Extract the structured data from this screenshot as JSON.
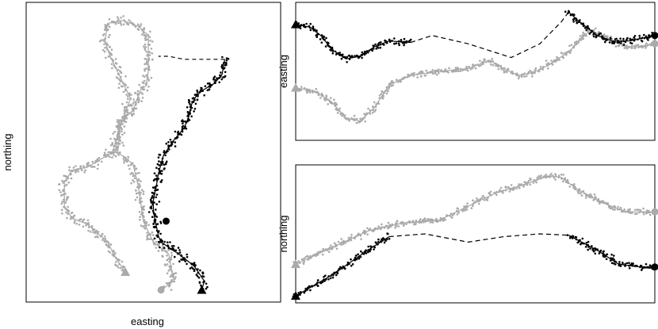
{
  "colors": {
    "track_a": "#aaaaaa",
    "track_b": "#000000",
    "frame": "#000000"
  },
  "chart_data": [
    {
      "type": "scatter",
      "title": "",
      "xlabel": "easting",
      "ylabel": "northing",
      "grid": false,
      "xlim": [
        0,
        100
      ],
      "ylim": [
        0,
        100
      ],
      "series": [
        {
          "color": "#aaaaaa",
          "curve": [
            [
              53,
              4
            ],
            [
              58,
              7
            ],
            [
              56,
              16
            ],
            [
              50,
              20
            ],
            [
              46,
              27
            ],
            [
              45,
              33
            ],
            [
              44,
              39
            ],
            [
              42,
              46
            ],
            [
              36,
              50
            ],
            [
              37,
              60
            ],
            [
              42,
              64
            ],
            [
              45,
              71
            ],
            [
              47,
              72
            ],
            [
              48,
              77
            ],
            [
              48,
              84
            ],
            [
              48,
              86
            ],
            [
              48,
              89
            ],
            [
              44,
              92
            ],
            [
              38,
              94
            ],
            [
              32,
              93
            ],
            [
              31,
              87
            ],
            [
              33,
              82
            ],
            [
              41,
              68
            ],
            [
              38,
              61
            ],
            [
              36,
              56
            ],
            [
              34,
              50
            ],
            [
              30,
              48
            ],
            [
              24,
              45
            ],
            [
              18,
              44
            ],
            [
              15,
              40
            ],
            [
              15,
              32
            ],
            [
              18,
              28
            ],
            [
              24,
              26
            ],
            [
              28,
              23
            ],
            [
              32,
              20
            ],
            [
              35,
              15
            ],
            [
              39,
              10
            ]
          ],
          "start": [
            39,
            10
          ],
          "end": [
            53,
            4
          ],
          "start_marker": "triangle",
          "end_marker": "circle"
        },
        {
          "color": "#000000",
          "curve": [
            [
              78,
              81
            ],
            [
              77,
              76
            ],
            [
              74,
              73
            ],
            [
              70,
              71
            ],
            [
              67,
              69
            ],
            [
              65,
              66
            ],
            [
              64,
              62
            ],
            [
              62,
              58
            ],
            [
              58,
              54
            ],
            [
              54,
              49
            ],
            [
              52,
              43
            ],
            [
              51,
              38
            ],
            [
              50,
              34
            ],
            [
              50,
              30
            ],
            [
              51,
              26
            ],
            [
              52,
              22
            ],
            [
              53,
              20
            ],
            [
              60,
              16
            ],
            [
              66,
              12
            ],
            [
              70,
              7
            ],
            [
              69,
              4
            ]
          ],
          "gap_curve": [
            [
              78,
              81
            ],
            [
              70,
              81
            ],
            [
              62,
              81
            ],
            [
              56,
              82
            ],
            [
              52,
              82
            ]
          ],
          "start": [
            69,
            4
          ],
          "end": [
            55,
            27
          ],
          "start_marker": "triangle",
          "end_marker": "circle"
        }
      ]
    },
    {
      "type": "line",
      "title": "",
      "xlabel": "",
      "ylabel": "easting",
      "grid": false,
      "xlim": [
        0,
        100
      ],
      "ylim": [
        0,
        100
      ],
      "series": [
        {
          "color": "#aaaaaa",
          "curve": [
            [
              0,
              38
            ],
            [
              5,
              36
            ],
            [
              10,
              28
            ],
            [
              14,
              16
            ],
            [
              18,
              14
            ],
            [
              22,
              24
            ],
            [
              26,
              40
            ],
            [
              32,
              47
            ],
            [
              40,
              50
            ],
            [
              48,
              52
            ],
            [
              54,
              58
            ],
            [
              58,
              52
            ],
            [
              62,
              47
            ],
            [
              66,
              49
            ],
            [
              70,
              54
            ],
            [
              76,
              64
            ],
            [
              82,
              80
            ],
            [
              87,
              74
            ],
            [
              92,
              68
            ],
            [
              97,
              68
            ],
            [
              100,
              70
            ]
          ],
          "start_marker": "triangle",
          "end_marker": "circle"
        },
        {
          "color": "#000000",
          "curve": [
            [
              0,
              84
            ],
            [
              4,
              82
            ],
            [
              7,
              76
            ],
            [
              10,
              66
            ],
            [
              14,
              59
            ],
            [
              18,
              61
            ],
            [
              22,
              68
            ],
            [
              26,
              72
            ],
            [
              32,
              71
            ],
            [
              38,
              76
            ],
            [
              48,
              70
            ],
            [
              60,
              60
            ],
            [
              68,
              70
            ],
            [
              74,
              86
            ],
            [
              76,
              93
            ],
            [
              79,
              86
            ],
            [
              84,
              76
            ],
            [
              88,
              72
            ],
            [
              93,
              72
            ],
            [
              100,
              76
            ]
          ],
          "gap_from": 32,
          "gap_to": 76,
          "start_marker": "triangle",
          "end_marker": "circle"
        }
      ]
    },
    {
      "type": "line",
      "title": "",
      "xlabel": "",
      "ylabel": "northing",
      "grid": false,
      "xlim": [
        0,
        100
      ],
      "ylim": [
        0,
        100
      ],
      "series": [
        {
          "color": "#aaaaaa",
          "curve": [
            [
              0,
              28
            ],
            [
              10,
              40
            ],
            [
              20,
              52
            ],
            [
              30,
              58
            ],
            [
              40,
              60
            ],
            [
              48,
              70
            ],
            [
              56,
              80
            ],
            [
              64,
              86
            ],
            [
              70,
              92
            ],
            [
              74,
              91
            ],
            [
              78,
              83
            ],
            [
              86,
              72
            ],
            [
              92,
              66
            ],
            [
              100,
              66
            ]
          ],
          "start_marker": "triangle",
          "end_marker": "circle"
        },
        {
          "color": "#000000",
          "curve": [
            [
              0,
              5
            ],
            [
              10,
              20
            ],
            [
              20,
              38
            ],
            [
              26,
              48
            ],
            [
              36,
              50
            ],
            [
              48,
              44
            ],
            [
              58,
              48
            ],
            [
              68,
              50
            ],
            [
              76,
              49
            ],
            [
              84,
              38
            ],
            [
              90,
              28
            ],
            [
              96,
              26
            ],
            [
              100,
              26
            ]
          ],
          "gap_from": 26,
          "gap_to": 76,
          "start_marker": "triangle",
          "end_marker": "circle"
        }
      ]
    }
  ]
}
